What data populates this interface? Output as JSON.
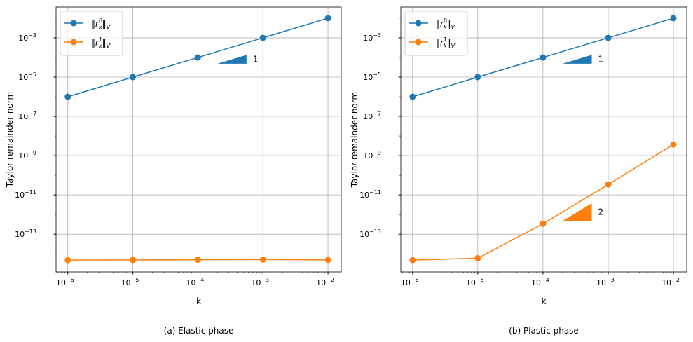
{
  "chart_data": [
    {
      "type": "line",
      "caption": "(a) Elastic phase",
      "xlabel": "k",
      "ylabel": "Taylor remainder norm",
      "xscale": "log",
      "yscale": "log",
      "xlim": [
        6.6e-07,
        0.016
      ],
      "ylim": [
        1.2e-15,
        0.037
      ],
      "grid": true,
      "legend_placement": "top-left",
      "xticks": [
        {
          "v": -6,
          "label": "10",
          "exp": "−6"
        },
        {
          "v": -5,
          "label": "10",
          "exp": "−5"
        },
        {
          "v": -4,
          "label": "10",
          "exp": "−4"
        },
        {
          "v": -3,
          "label": "10",
          "exp": "−3"
        },
        {
          "v": -2,
          "label": "10",
          "exp": "−2"
        }
      ],
      "yticks": [
        {
          "v": -13,
          "label": "10",
          "exp": "−13"
        },
        {
          "v": -11,
          "label": "10",
          "exp": "−11"
        },
        {
          "v": -9,
          "label": "10",
          "exp": "−9"
        },
        {
          "v": -7,
          "label": "10",
          "exp": "−7"
        },
        {
          "v": -5,
          "label": "10",
          "exp": "−5"
        },
        {
          "v": -3,
          "label": "10",
          "exp": "−3"
        }
      ],
      "x": [
        1e-06,
        1e-05,
        0.0001,
        0.001,
        0.01
      ],
      "series": [
        {
          "name": "‖r_k^0‖_V'",
          "sup": "0",
          "color": "#1f77b4",
          "values": [
            1e-06,
            1e-05,
            0.0001,
            0.001,
            0.01
          ]
        },
        {
          "name": "‖r_k^1‖_V'",
          "sup": "1",
          "color": "#ff7f0e",
          "values": [
            4.8e-15,
            4.9e-15,
            5e-15,
            5.1e-15,
            4.9e-15
          ]
        }
      ],
      "slope_triangles": [
        {
          "label": "1",
          "color": "#1f77b4",
          "slope": 1,
          "x": [
            0.0002,
            0.00056
          ],
          "y_base": 4.8e-05
        }
      ]
    },
    {
      "type": "line",
      "caption": "(b) Plastic phase",
      "xlabel": "k",
      "ylabel": "Taylor remainder norm",
      "xscale": "log",
      "yscale": "log",
      "xlim": [
        6.6e-07,
        0.016
      ],
      "ylim": [
        1.2e-15,
        0.037
      ],
      "grid": true,
      "legend_placement": "top-left",
      "xticks": [
        {
          "v": -6,
          "label": "10",
          "exp": "−6"
        },
        {
          "v": -5,
          "label": "10",
          "exp": "−5"
        },
        {
          "v": -4,
          "label": "10",
          "exp": "−4"
        },
        {
          "v": -3,
          "label": "10",
          "exp": "−3"
        },
        {
          "v": -2,
          "label": "10",
          "exp": "−2"
        }
      ],
      "yticks": [
        {
          "v": -13,
          "label": "10",
          "exp": "−13"
        },
        {
          "v": -11,
          "label": "10",
          "exp": "−11"
        },
        {
          "v": -9,
          "label": "10",
          "exp": "−9"
        },
        {
          "v": -7,
          "label": "10",
          "exp": "−7"
        },
        {
          "v": -5,
          "label": "10",
          "exp": "−5"
        },
        {
          "v": -3,
          "label": "10",
          "exp": "−3"
        }
      ],
      "x": [
        1e-06,
        1e-05,
        0.0001,
        0.001,
        0.01
      ],
      "series": [
        {
          "name": "‖r_k^0‖_V'",
          "sup": "0",
          "color": "#1f77b4",
          "values": [
            1e-06,
            1e-05,
            0.0001,
            0.001,
            0.01
          ]
        },
        {
          "name": "‖r_k^1‖_V'",
          "sup": "1",
          "color": "#ff7f0e",
          "values": [
            4.8e-15,
            6e-15,
            3.4e-13,
            3.4e-11,
            3.7e-09
          ]
        }
      ],
      "slope_triangles": [
        {
          "label": "1",
          "color": "#1f77b4",
          "slope": 1,
          "x": [
            0.0002,
            0.00056
          ],
          "y_base": 4.8e-05
        },
        {
          "label": "2",
          "color": "#ff7f0e",
          "slope": 2,
          "x": [
            0.0002,
            0.00056
          ],
          "y_base": 4.8e-13
        }
      ]
    }
  ]
}
